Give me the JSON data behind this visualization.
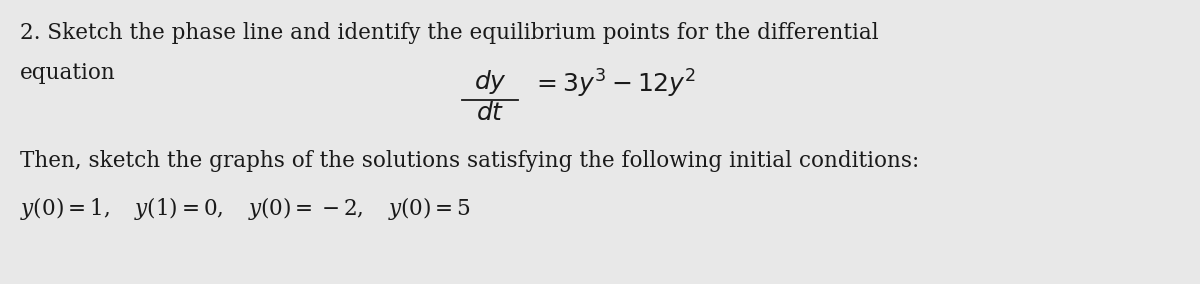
{
  "background_color": "#e8e8e8",
  "text_color": "#1a1a1a",
  "figsize": [
    12.0,
    2.84
  ],
  "dpi": 100,
  "line1": "2. Sketch the phase line and identify the equilibrium points for the differential",
  "line2": "equation",
  "fraction_num": "$dy$",
  "fraction_den": "$dt$",
  "rhs": "$= 3y^3 - 12y^2$",
  "line4": "Then, sketch the graphs of the solutions satisfying the following initial conditions:",
  "line5": "$y(0) = 1, \\quad y(1) = 0, \\quad y(0) = -2, \\quad y(0) = 5$",
  "font_size_body": 15.5,
  "font_size_eq": 18,
  "font_size_line5": 15.5
}
